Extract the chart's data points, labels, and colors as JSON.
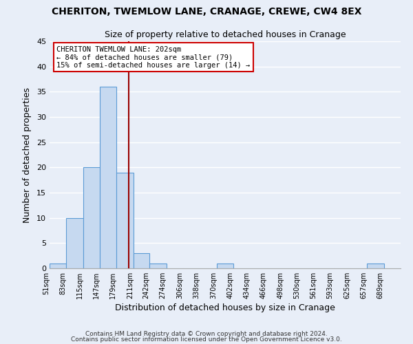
{
  "title": "CHERITON, TWEMLOW LANE, CRANAGE, CREWE, CW4 8EX",
  "subtitle": "Size of property relative to detached houses in Cranage",
  "xlabel": "Distribution of detached houses by size in Cranage",
  "ylabel": "Number of detached properties",
  "bar_edges": [
    51,
    83,
    115,
    147,
    179,
    211,
    242,
    274,
    306,
    338,
    370,
    402,
    434,
    466,
    498,
    530,
    561,
    593,
    625,
    657,
    689
  ],
  "bar_heights": [
    1,
    10,
    20,
    36,
    19,
    3,
    1,
    0,
    0,
    0,
    1,
    0,
    0,
    0,
    0,
    0,
    0,
    0,
    0,
    1,
    0
  ],
  "tick_labels": [
    "51sqm",
    "83sqm",
    "115sqm",
    "147sqm",
    "179sqm",
    "211sqm",
    "242sqm",
    "274sqm",
    "306sqm",
    "338sqm",
    "370sqm",
    "402sqm",
    "434sqm",
    "466sqm",
    "498sqm",
    "530sqm",
    "561sqm",
    "593sqm",
    "625sqm",
    "657sqm",
    "689sqm"
  ],
  "bar_color": "#c6d9f0",
  "bar_edge_color": "#5b9bd5",
  "vline_x": 202,
  "vline_color": "#990000",
  "annotation_line1": "CHERITON TWEMLOW LANE: 202sqm",
  "annotation_line2": "← 84% of detached houses are smaller (79)",
  "annotation_line3": "15% of semi-detached houses are larger (14) →",
  "annotation_box_color": "#ffffff",
  "annotation_box_edge": "#cc0000",
  "ylim": [
    0,
    45
  ],
  "yticks": [
    0,
    5,
    10,
    15,
    20,
    25,
    30,
    35,
    40,
    45
  ],
  "bg_color": "#e8eef8",
  "grid_color": "#ffffff",
  "footer1": "Contains HM Land Registry data © Crown copyright and database right 2024.",
  "footer2": "Contains public sector information licensed under the Open Government Licence v3.0."
}
